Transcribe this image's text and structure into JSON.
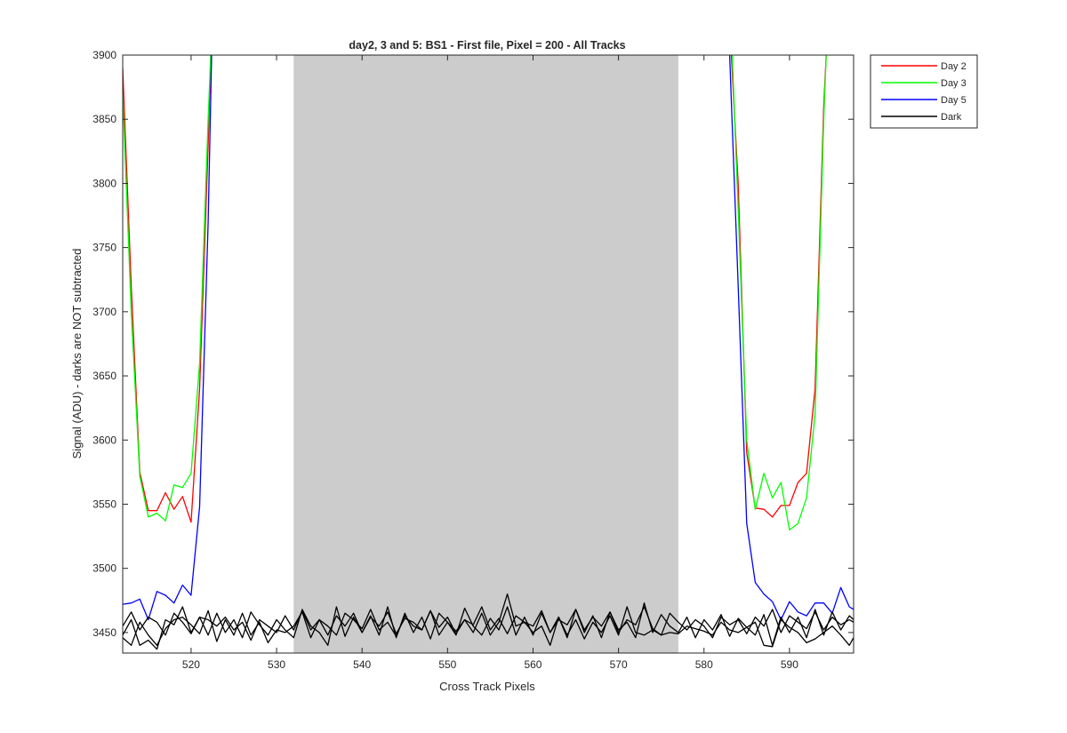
{
  "chart_data": {
    "type": "line",
    "title": "day2, 3 and 5: BS1 - First file, Pixel = 200 - All Tracks",
    "xlabel": "Cross Track Pixels",
    "ylabel": "Signal (ADU) - darks are NOT subtracted",
    "xlim": [
      512,
      597.5
    ],
    "ylim": [
      3434,
      3900
    ],
    "xticks": [
      520,
      530,
      540,
      550,
      560,
      570,
      580,
      590
    ],
    "yticks": [
      3450,
      3500,
      3550,
      3600,
      3650,
      3700,
      3750,
      3800,
      3850,
      3900
    ],
    "shaded_region": {
      "x": [
        532,
        577
      ],
      "color": "#cccccc"
    },
    "legend": {
      "placement": "outside-top-right",
      "entries": [
        {
          "label": "Day 2",
          "color": "#ff0000"
        },
        {
          "label": "Day 3",
          "color": "#00ff00"
        },
        {
          "label": "Day 5",
          "color": "#0000ff"
        },
        {
          "label": "Dark",
          "color": "#000000"
        }
      ]
    },
    "series": [
      {
        "name": "Day 2",
        "color": "#ff0000",
        "segments": [
          {
            "x": [
              512,
              513,
              514,
              515,
              516,
              517,
              518,
              519,
              520,
              521,
              522,
              522.3
            ],
            "y": [
              3890,
              3720,
              3575,
              3545,
              3545,
              3559,
              3546,
              3556,
              3536,
              3640,
              3830,
              3900
            ]
          },
          {
            "x": [
              583.2,
              584,
              585,
              586,
              587,
              588,
              589,
              590,
              591,
              592,
              593,
              594,
              594.3
            ],
            "y": [
              3900,
              3800,
              3590,
              3547,
              3546,
              3540,
              3549,
              3549,
              3567,
              3574,
              3640,
              3860,
              3900
            ]
          }
        ]
      },
      {
        "name": "Day 3",
        "color": "#00ff00",
        "segments": [
          {
            "x": [
              512,
              513,
              514,
              515,
              516,
              517,
              518,
              519,
              520,
              521,
              522,
              522.3
            ],
            "y": [
              3870,
              3700,
              3572,
              3540,
              3543,
              3537,
              3565,
              3563,
              3574,
              3660,
              3850,
              3900
            ]
          },
          {
            "x": [
              583.3,
              584,
              585,
              586,
              587,
              588,
              589,
              590,
              591,
              592,
              593,
              594,
              594.3
            ],
            "y": [
              3900,
              3780,
              3600,
              3546,
              3574,
              3555,
              3567,
              3530,
              3535,
              3555,
              3620,
              3850,
              3900
            ]
          }
        ]
      },
      {
        "name": "Day 5",
        "color": "#0000ff",
        "segments": [
          {
            "x": [
              512,
              513,
              514,
              515,
              516,
              517,
              518,
              519,
              520,
              521,
              522,
              522.4
            ],
            "y": [
              3472,
              3473,
              3476,
              3460,
              3482,
              3479,
              3473,
              3487,
              3479,
              3548,
              3770,
              3900
            ]
          },
          {
            "x": [
              583,
              584,
              585,
              586,
              587,
              588,
              589,
              590,
              591,
              592,
              593,
              594,
              595,
              596,
              597,
              597.5
            ],
            "y": [
              3900,
              3720,
              3535,
              3489,
              3480,
              3474,
              3460,
              3474,
              3466,
              3463,
              3473,
              3473,
              3465,
              3485,
              3470,
              3468
            ]
          }
        ]
      },
      {
        "name": "Dark",
        "color": "#000000",
        "segments": [
          {
            "x": [
              512,
              513,
              514,
              515,
              516,
              517,
              518,
              519,
              520,
              521,
              522,
              523,
              524,
              525,
              526,
              527,
              528,
              529,
              530,
              531,
              532,
              533,
              534,
              535,
              536,
              537,
              538,
              539,
              540,
              541,
              542,
              543,
              544,
              545,
              546,
              547,
              548,
              549,
              550,
              551,
              552,
              553,
              554,
              555,
              556,
              557,
              558,
              559,
              560,
              561,
              562,
              563,
              564,
              565,
              566,
              567,
              568,
              569,
              570,
              571,
              572,
              573,
              574,
              575,
              576,
              577,
              578,
              579,
              580,
              581,
              582,
              583,
              584,
              585,
              586,
              587,
              588,
              589,
              590,
              591,
              592,
              593,
              594,
              595,
              596,
              597,
              597.5
            ],
            "y": [
              3455,
              3466,
              3452,
              3462,
              3458,
              3448,
              3465,
              3458,
              3449,
              3462,
              3460,
              3455,
              3462,
              3452,
              3458,
              3444,
              3460,
              3455,
              3450,
              3463,
              3452,
              3467,
              3452,
              3460,
              3448,
              3463,
              3455,
              3465,
              3450,
              3462,
              3455,
              3466,
              3449,
              3461,
              3458,
              3452,
              3467,
              3454,
              3462,
              3449,
              3460,
              3456,
              3470,
              3452,
              3461,
              3449,
              3463,
              3458,
              3455,
              3467,
              3450,
              3460,
              3456,
              3468,
              3452,
              3462,
              3455,
              3466,
              3450,
              3460,
              3456,
              3470,
              3453,
              3448,
              3465,
              3458,
              3452,
              3460,
              3455,
              3446,
              3462,
              3456,
              3460,
              3449,
              3462,
              3455,
              3468,
              3450,
              3463,
              3458,
              3453,
              3466,
              3452,
              3462,
              3456,
              3460,
              3458
            ]
          },
          {
            "x": [
              512,
              513,
              514,
              515,
              516,
              517,
              518,
              519,
              520,
              521,
              522,
              523,
              524,
              525,
              526,
              527,
              528,
              529,
              530,
              531,
              532,
              533,
              534,
              535,
              536,
              537,
              538,
              539,
              540,
              541,
              542,
              543,
              544,
              545,
              546,
              547,
              548,
              549,
              550,
              551,
              552,
              553,
              554,
              555,
              556,
              557,
              558,
              559,
              560,
              561,
              562,
              563,
              564,
              565,
              566,
              567,
              568,
              569,
              570,
              571,
              572,
              573,
              574,
              575,
              576,
              577,
              578,
              579,
              580,
              581,
              582,
              583,
              584,
              585,
              586,
              587,
              588,
              589,
              590,
              591,
              592,
              593,
              594,
              595,
              596,
              597,
              597.5
            ],
            "y": [
              3448,
              3460,
              3440,
              3444,
              3437,
              3460,
              3456,
              3470,
              3450,
              3462,
              3448,
              3465,
              3450,
              3460,
              3446,
              3466,
              3456,
              3448,
              3460,
              3452,
              3446,
              3468,
              3455,
              3450,
              3440,
              3470,
              3447,
              3462,
              3450,
              3463,
              3448,
              3470,
              3446,
              3465,
              3450,
              3462,
              3445,
              3465,
              3458,
              3448,
              3469,
              3455,
              3448,
              3461,
              3452,
              3470,
              3448,
              3462,
              3448,
              3465,
              3450,
              3462,
              3446,
              3468,
              3450,
              3463,
              3446,
              3466,
              3452,
              3458,
              3446,
              3473,
              3450,
              3464,
              3455,
              3450,
              3462,
              3446,
              3460,
              3452,
              3464,
              3447,
              3461,
              3454,
              3448,
              3464,
              3440,
              3462,
              3450,
              3462,
              3446,
              3468,
              3448,
              3466,
              3452,
              3463,
              3460
            ]
          },
          {
            "x": [
              512,
              513,
              514,
              515,
              516,
              517,
              518,
              519,
              520,
              521,
              522,
              523,
              524,
              525,
              526,
              527,
              528,
              529,
              530,
              531,
              532,
              533,
              534,
              535,
              536,
              537,
              538,
              539,
              540,
              541,
              542,
              543,
              544,
              545,
              546,
              547,
              548,
              549,
              550,
              551,
              552,
              553,
              554,
              555,
              556,
              557,
              558,
              559,
              560,
              561,
              562,
              563,
              564,
              565,
              566,
              567,
              568,
              569,
              570,
              571,
              572,
              573,
              574,
              575,
              576,
              577,
              578,
              579,
              580,
              581,
              582,
              583,
              584,
              585,
              586,
              587,
              588,
              589,
              590,
              591,
              592,
              593,
              594,
              595,
              596,
              597,
              597.5
            ],
            "y": [
              3446,
              3440,
              3458,
              3448,
              3440,
              3453,
              3460,
              3462,
              3456,
              3449,
              3467,
              3443,
              3460,
              3448,
              3465,
              3448,
              3458,
              3442,
              3452,
              3450,
              3455,
              3466,
              3446,
              3460,
              3455,
              3448,
              3465,
              3460,
              3453,
              3468,
              3452,
              3458,
              3447,
              3463,
              3455,
              3452,
              3467,
              3448,
              3458,
              3451,
              3460,
              3450,
              3465,
              3448,
              3458,
              3480,
              3455,
              3458,
              3450,
              3455,
              3440,
              3462,
              3448,
              3460,
              3445,
              3458,
              3450,
              3463,
              3448,
              3470,
              3450,
              3448,
              3452,
              3448,
              3450,
              3449,
              3455,
              3453,
              3451,
              3448,
              3458,
              3452,
              3450,
              3454,
              3458,
              3440,
              3439,
              3460,
              3454,
              3450,
              3442,
              3445,
              3450,
              3455,
              3448,
              3440,
              3446
            ]
          }
        ]
      }
    ]
  }
}
